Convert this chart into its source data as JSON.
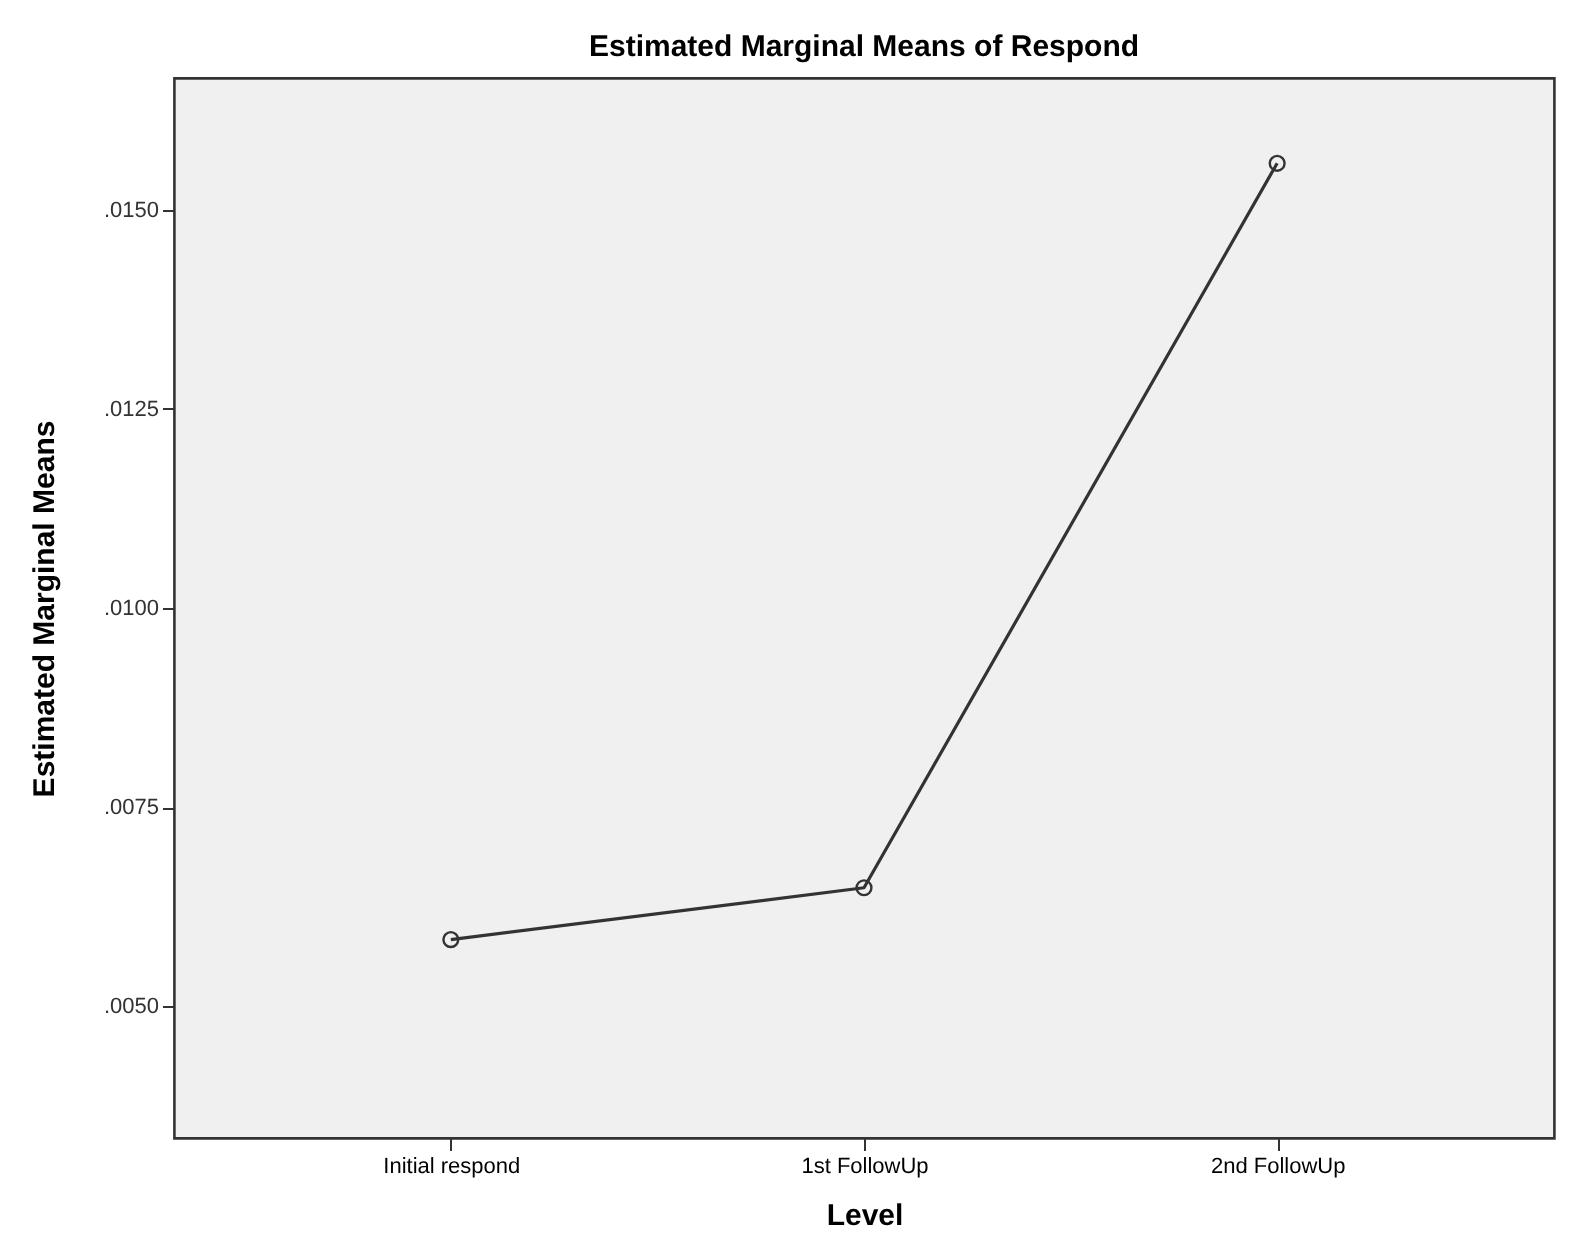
{
  "chart_data": {
    "type": "line",
    "title": "Estimated Marginal Means of Respond",
    "xlabel": "Level",
    "ylabel": "Estimated Marginal Means",
    "categories": [
      "Initial respond",
      "1st FollowUp",
      "2nd FollowUp"
    ],
    "series": [
      {
        "color": "#333333",
        "values": [
          0.00584,
          0.00649,
          0.01558
        ]
      }
    ],
    "ylim": [
      0.00335,
      0.01665
    ],
    "yticks": [
      {
        "value": 0.005,
        "label": ".0050"
      },
      {
        "value": 0.0075,
        "label": ".0075"
      },
      {
        "value": 0.01,
        "label": ".0100"
      },
      {
        "value": 0.0125,
        "label": ".0125"
      },
      {
        "value": 0.015,
        "label": ".0150"
      }
    ],
    "marker": "circle",
    "line_style": "solid",
    "grid": false
  }
}
